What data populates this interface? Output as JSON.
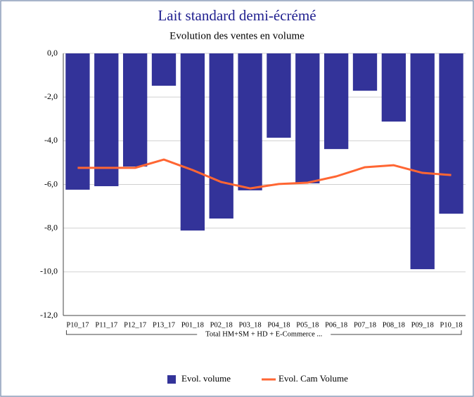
{
  "chart_data": {
    "type": "bar",
    "title": "Lait standard demi-écrémé",
    "subtitle": "Evolution des ventes en volume",
    "group_label": "Total HM+SM + HD + E-Commerce ...",
    "categories": [
      "P10_17",
      "P11_17",
      "P12_17",
      "P13_17",
      "P01_18",
      "P02_18",
      "P03_18",
      "P04_18",
      "P05_18",
      "P06_18",
      "P07_18",
      "P08_18",
      "P09_18",
      "P10_18"
    ],
    "series": [
      {
        "name": "Evol. volume",
        "type": "bar",
        "color": "#333399",
        "values": [
          -6.24,
          -6.08,
          -5.18,
          -1.48,
          -8.11,
          -7.56,
          -6.27,
          -3.86,
          -5.95,
          -4.38,
          -1.71,
          -3.12,
          -9.88,
          -7.34
        ]
      },
      {
        "name": "Evol. Cam Volume",
        "type": "line",
        "color": "#ff6633",
        "values": [
          -5.24,
          -5.24,
          -5.24,
          -4.86,
          -5.34,
          -5.89,
          -6.18,
          -5.98,
          -5.92,
          -5.63,
          -5.21,
          -5.12,
          -5.47,
          -5.57
        ]
      }
    ],
    "ylim": [
      -12,
      0
    ],
    "yticks": [
      {
        "value": 0,
        "label": "0,0"
      },
      {
        "value": -2,
        "label": "-2,0"
      },
      {
        "value": -4,
        "label": "-4,0"
      },
      {
        "value": -6,
        "label": "-6,0"
      },
      {
        "value": -8,
        "label": "-8,0"
      },
      {
        "value": -10,
        "label": "-10,0"
      },
      {
        "value": -12,
        "label": "-12,0"
      }
    ],
    "grid": true,
    "legend": "bottom"
  }
}
